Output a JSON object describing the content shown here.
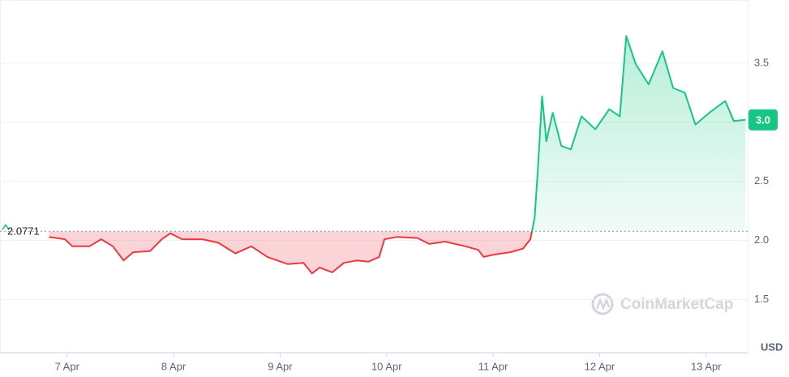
{
  "chart_data": {
    "type": "line",
    "x": [
      6.83,
      6.98,
      7.05,
      7.21,
      7.32,
      7.43,
      7.53,
      7.62,
      7.78,
      7.89,
      7.97,
      8.08,
      8.27,
      8.42,
      8.58,
      8.73,
      8.88,
      9.07,
      9.22,
      9.3,
      9.37,
      9.49,
      9.6,
      9.72,
      9.83,
      9.93,
      9.98,
      10.1,
      10.29,
      10.4,
      10.55,
      10.74,
      10.86,
      10.91,
      11.01,
      11.16,
      11.28,
      11.35,
      11.39,
      11.42,
      11.46,
      11.5,
      11.56,
      11.64,
      11.73,
      11.83,
      11.96,
      12.09,
      12.19,
      12.25,
      12.34,
      12.46,
      12.59,
      12.69,
      12.8,
      12.9,
      13.03,
      13.18,
      13.26,
      13.37
    ],
    "values": [
      2.03,
      2.01,
      1.95,
      1.95,
      2.01,
      1.95,
      1.83,
      1.9,
      1.91,
      2.01,
      2.06,
      2.01,
      2.01,
      1.98,
      1.89,
      1.95,
      1.86,
      1.8,
      1.81,
      1.72,
      1.77,
      1.73,
      1.81,
      1.83,
      1.82,
      1.86,
      2.01,
      2.03,
      2.02,
      1.97,
      1.99,
      1.95,
      1.92,
      1.86,
      1.88,
      1.9,
      1.93,
      2.01,
      2.19,
      2.6,
      3.22,
      2.84,
      3.08,
      2.8,
      2.77,
      3.05,
      2.94,
      3.11,
      3.05,
      3.73,
      3.49,
      3.32,
      3.6,
      3.29,
      3.25,
      2.98,
      3.08,
      3.18,
      3.01,
      3.02
    ],
    "color_up": "#16c784",
    "color_down": "#ea3943",
    "reference_value": 2.0771,
    "price_label": "3.0",
    "currency": "USD",
    "watermark": "CoinMarketCap",
    "xlim": [
      6.37,
      13.39
    ],
    "xticks": [
      {
        "value": 7,
        "label": "7 Apr"
      },
      {
        "value": 8,
        "label": "8 Apr"
      },
      {
        "value": 9,
        "label": "9 Apr"
      },
      {
        "value": 10,
        "label": "10 Apr"
      },
      {
        "value": 11,
        "label": "11 Apr"
      },
      {
        "value": 12,
        "label": "12 Apr"
      },
      {
        "value": 13,
        "label": "13 Apr"
      }
    ],
    "ylim": [
      1.05,
      4.0
    ],
    "yticks": [
      1.5,
      {
        "value": 2,
        "label": "2.0"
      },
      2.5,
      {
        "value": 3,
        "label": "3.0"
      },
      3.5
    ],
    "grid": true
  }
}
